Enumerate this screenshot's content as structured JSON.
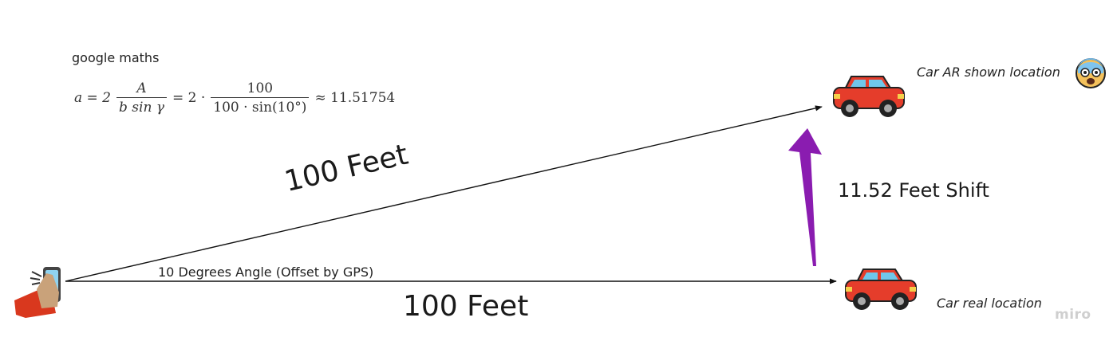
{
  "diagram": {
    "google_label": "google maths",
    "formula": {
      "lhs": "a = 2",
      "frac1_num": "A",
      "frac1_den": "b sin γ",
      "mid": "= 2 ·",
      "frac2_num": "100",
      "frac2_den": "100 · sin(10°)",
      "rhs": "≈ 11.51754"
    },
    "labels": {
      "ar_location": "Car AR shown location",
      "real_location": "Car real location",
      "shift": "11.52 Feet Shift",
      "angle": "10 Degrees Angle (Offset by GPS)",
      "distance_top": "100 Feet",
      "distance_bottom": "100 Feet"
    },
    "watermark": "miro",
    "icons": {
      "phone_hand": "phone-in-hand-icon",
      "car_ar": "car-icon",
      "car_real": "car-icon",
      "face": "shocked-face-icon"
    },
    "colors": {
      "car_body": "#e53d2b",
      "arrow_shift": "#8a1cb0",
      "line": "#111111",
      "face_skin": "#f4c15b"
    }
  }
}
